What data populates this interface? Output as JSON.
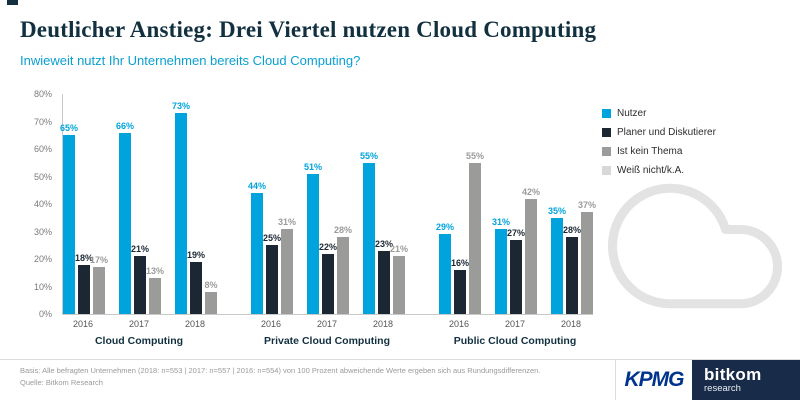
{
  "header": {
    "title": "Deutlicher Anstieg: Drei Viertel nutzen Cloud Computing",
    "subtitle": "Inwieweit nutzt Ihr Unternehmen bereits Cloud Computing?"
  },
  "colors": {
    "nutzer_cyan": "#00a3dc",
    "planer_dark": "#1b2733",
    "kein_thema_gray": "#9b9b9a",
    "weiss_nicht_lightgray": "#d8d8d8",
    "title_navy": "#12303f",
    "subtitle_teal": "#0a9fd2",
    "kpmg_blue": "#00338d",
    "bitkom_navy": "#182b49"
  },
  "chart_data": {
    "type": "bar",
    "title": "Deutlicher Anstieg: Drei Viertel nutzen Cloud Computing",
    "subtitle": "Inwieweit nutzt Ihr Unternehmen bereits Cloud Computing?",
    "ylim": [
      0,
      80
    ],
    "ytick_step": 10,
    "ytick_suffix": "%",
    "grid": false,
    "legend_position": "right",
    "legend": [
      {
        "label": "Nutzer",
        "color": "#00a3dc"
      },
      {
        "label": "Planer und Diskutierer",
        "color": "#1b2733"
      },
      {
        "label": "Ist kein Thema",
        "color": "#9b9b9a"
      },
      {
        "label": "Weiß nicht/k.A.",
        "color": "#d8d8d8"
      }
    ],
    "groups": [
      {
        "label": "Cloud Computing",
        "categories": [
          "2016",
          "2017",
          "2018"
        ],
        "series": [
          {
            "name": "Nutzer",
            "values": [
              65,
              66,
              73
            ]
          },
          {
            "name": "Planer und Diskutierer",
            "values": [
              18,
              21,
              19
            ]
          },
          {
            "name": "Ist kein Thema",
            "values": [
              17,
              13,
              8
            ]
          }
        ]
      },
      {
        "label": "Private Cloud Computing",
        "categories": [
          "2016",
          "2017",
          "2018"
        ],
        "series": [
          {
            "name": "Nutzer",
            "values": [
              44,
              51,
              55
            ]
          },
          {
            "name": "Planer und Diskutierer",
            "values": [
              25,
              22,
              23
            ]
          },
          {
            "name": "Ist kein Thema",
            "values": [
              31,
              28,
              21
            ]
          }
        ]
      },
      {
        "label": "Public Cloud Computing",
        "categories": [
          "2016",
          "2017",
          "2018"
        ],
        "series": [
          {
            "name": "Nutzer",
            "values": [
              29,
              31,
              35
            ]
          },
          {
            "name": "Planer und Diskutierer",
            "values": [
              16,
              27,
              28
            ]
          },
          {
            "name": "Ist kein Thema",
            "values": [
              55,
              42,
              37
            ]
          }
        ]
      }
    ]
  },
  "footer": {
    "basis": "Basis: Alle befragten Unternehmen (2018: n=553 | 2017: n=557 | 2016: n=554) von 100 Prozent abweichende Werte ergeben sich aus Rundungsdifferenzen.",
    "source": "Quelle: Bitkom Research"
  },
  "logos": {
    "kpmg": "KPMG",
    "bitkom": "bitkom",
    "bitkom_sub": "research"
  }
}
